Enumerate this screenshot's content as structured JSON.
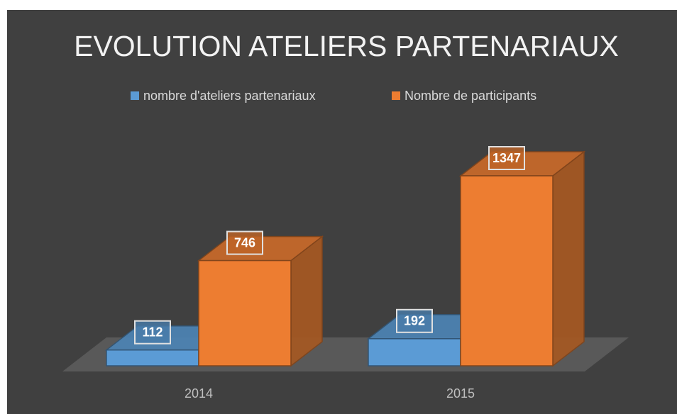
{
  "chart_data": {
    "type": "bar3d",
    "title": "EVOLUTION ATELIERS PARTENARIAUX",
    "categories": [
      "2014",
      "2015"
    ],
    "series": [
      {
        "name": "nombre d'ateliers partenariaux",
        "color": "#5b9bd5",
        "values": [
          112,
          192
        ]
      },
      {
        "name": "Nombre de participants",
        "color": "#ed7d31",
        "values": [
          746,
          1347
        ]
      }
    ]
  }
}
